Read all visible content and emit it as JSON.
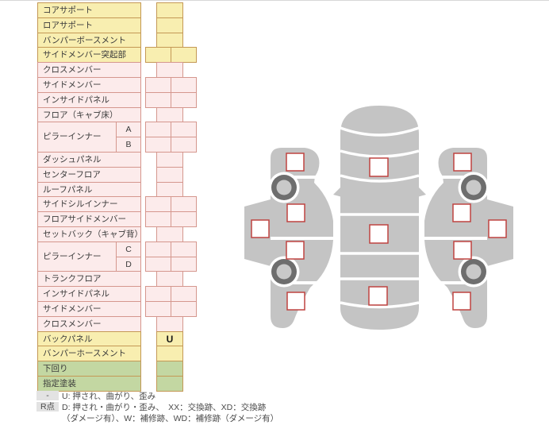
{
  "table": {
    "rows": [
      {
        "label": "コアサポート",
        "color": "yellow",
        "cells": "single"
      },
      {
        "label": "ロアサポート",
        "color": "yellow",
        "cells": "single"
      },
      {
        "label": "バンパーボースメント",
        "color": "yellow",
        "cells": "single"
      },
      {
        "label": "サイドメンバー突起部",
        "color": "yellow",
        "cells": "double"
      },
      {
        "label": "クロスメンバー",
        "color": "pink",
        "cells": "single"
      },
      {
        "label": "サイドメンバー",
        "color": "pink",
        "cells": "double"
      },
      {
        "label": "インサイドパネル",
        "color": "pink",
        "cells": "double"
      },
      {
        "label": "フロア（キャブ床）",
        "color": "pink",
        "cells": "single"
      },
      {
        "label": "ピラーインナー",
        "color": "pink",
        "cells": "double",
        "subs": [
          "A",
          "B"
        ]
      },
      {
        "label": "ダッシュパネル",
        "color": "pink",
        "cells": "single"
      },
      {
        "label": "センターフロア",
        "color": "pink",
        "cells": "single"
      },
      {
        "label": "ルーフパネル",
        "color": "pink",
        "cells": "single"
      },
      {
        "label": "サイドシルインナー",
        "color": "pink",
        "cells": "double"
      },
      {
        "label": "フロアサイドメンバー",
        "color": "pink",
        "cells": "double"
      },
      {
        "label": "セットバック（キャブ背）",
        "color": "pink",
        "cells": "single"
      },
      {
        "label": "ピラーインナー",
        "color": "pink",
        "cells": "double",
        "subs": [
          "C",
          "D"
        ]
      },
      {
        "label": "トランクフロア",
        "color": "pink",
        "cells": "single"
      },
      {
        "label": "インサイドパネル",
        "color": "pink",
        "cells": "double"
      },
      {
        "label": "サイドメンバー",
        "color": "pink",
        "cells": "double"
      },
      {
        "label": "クロスメンバー",
        "color": "pink",
        "cells": "single"
      },
      {
        "label": "バックパネル",
        "color": "yellow",
        "cells": "single",
        "mark": "U"
      },
      {
        "label": "バンパーホースメント",
        "color": "yellow",
        "cells": "single"
      },
      {
        "label": "下回り",
        "color": "green",
        "cells": "single"
      },
      {
        "label": "指定塗装",
        "color": "green",
        "cells": "single"
      }
    ]
  },
  "legend": {
    "row1_key": "-",
    "row1_text": "U: 押され、曲がり、歪み",
    "row2_key": "R点",
    "row2_text": "D: 押され・曲がり・歪み、　XX：交換跡、XD：交換跡",
    "row3_text": "（ダメージ有）、W：補修跡、WD：補修跡（ダメージ有）"
  },
  "diagram": {
    "views": [
      {
        "name": "left-side-view",
        "checkbox_count": 5,
        "wheel_count": 2,
        "all_unchecked": true
      },
      {
        "name": "top-view",
        "checkbox_count": 3,
        "all_unchecked": true
      },
      {
        "name": "right-side-view",
        "checkbox_count": 5,
        "wheel_count": 2,
        "all_unchecked": true
      }
    ]
  },
  "colors": {
    "row_yellow": "#f8eeb0",
    "row_pink": "#fcebeb",
    "row_green": "#c3d7a2",
    "border_orange": "#c49855",
    "border_pink": "#d5978e",
    "checkbox_red": "#bf4340",
    "car_gray": "#c4c4c4",
    "wheel_dark": "#6e6e6e",
    "wheel_hub": "#c9c9c9",
    "legend_key_bg": "#e3e3e3"
  }
}
